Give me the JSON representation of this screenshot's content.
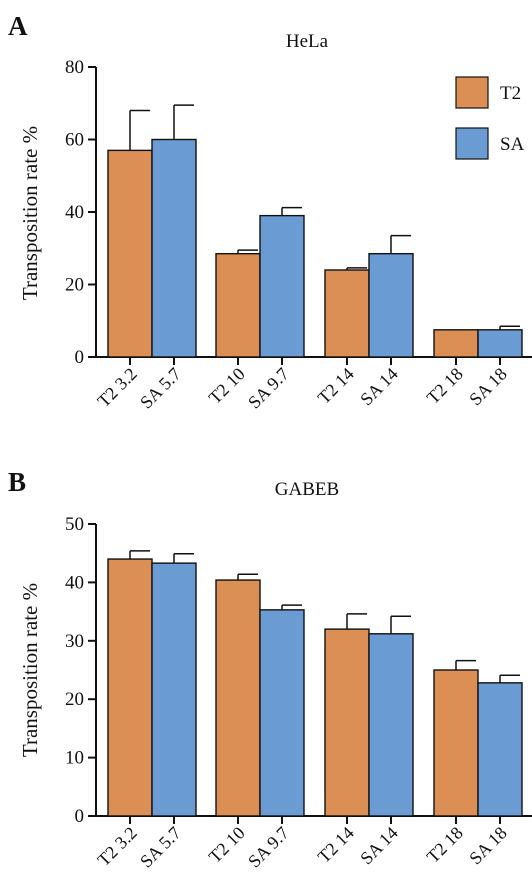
{
  "colors": {
    "T2": "#dc8f55",
    "SA": "#6a9bd3",
    "stroke": "#111111"
  },
  "chart_data": [
    {
      "type": "bar",
      "panel": "A",
      "title": "HeLa",
      "ylabel": "Transposition rate %",
      "xlabel": "",
      "ylim": [
        0,
        80
      ],
      "yticks": [
        0,
        20,
        40,
        60,
        80
      ],
      "grid": false,
      "legend": {
        "position": "top-right",
        "entries": [
          "T2",
          "SA"
        ]
      },
      "categories": [
        "T2 3.2",
        "SA 5.7",
        "T2 10",
        "SA 9.7",
        "T2 14",
        "SA 14",
        "T2 18",
        "SA 18"
      ],
      "bar_series": [
        "T2",
        "SA",
        "T2",
        "SA",
        "T2",
        "SA",
        "T2",
        "SA"
      ],
      "values": [
        57,
        60,
        28.5,
        39,
        24,
        28.5,
        7.5,
        7.5
      ],
      "errors": [
        11,
        9.5,
        1,
        2.2,
        0.6,
        5,
        0,
        1
      ]
    },
    {
      "type": "bar",
      "panel": "B",
      "title": "GABEB",
      "ylabel": "Transposition rate %",
      "xlabel": "",
      "ylim": [
        0,
        50
      ],
      "yticks": [
        0,
        10,
        20,
        30,
        40,
        50
      ],
      "grid": false,
      "categories": [
        "T2 3.2",
        "SA 5.7",
        "T2 10",
        "SA 9.7",
        "T2 14",
        "SA 14",
        "T2 18",
        "SA 18"
      ],
      "bar_series": [
        "T2",
        "SA",
        "T2",
        "SA",
        "T2",
        "SA",
        "T2",
        "SA"
      ],
      "values": [
        44,
        43.3,
        40.4,
        35.3,
        32,
        31.2,
        25,
        22.8
      ],
      "errors": [
        1.4,
        1.6,
        1,
        0.8,
        2.6,
        3,
        1.6,
        1.3
      ]
    }
  ]
}
